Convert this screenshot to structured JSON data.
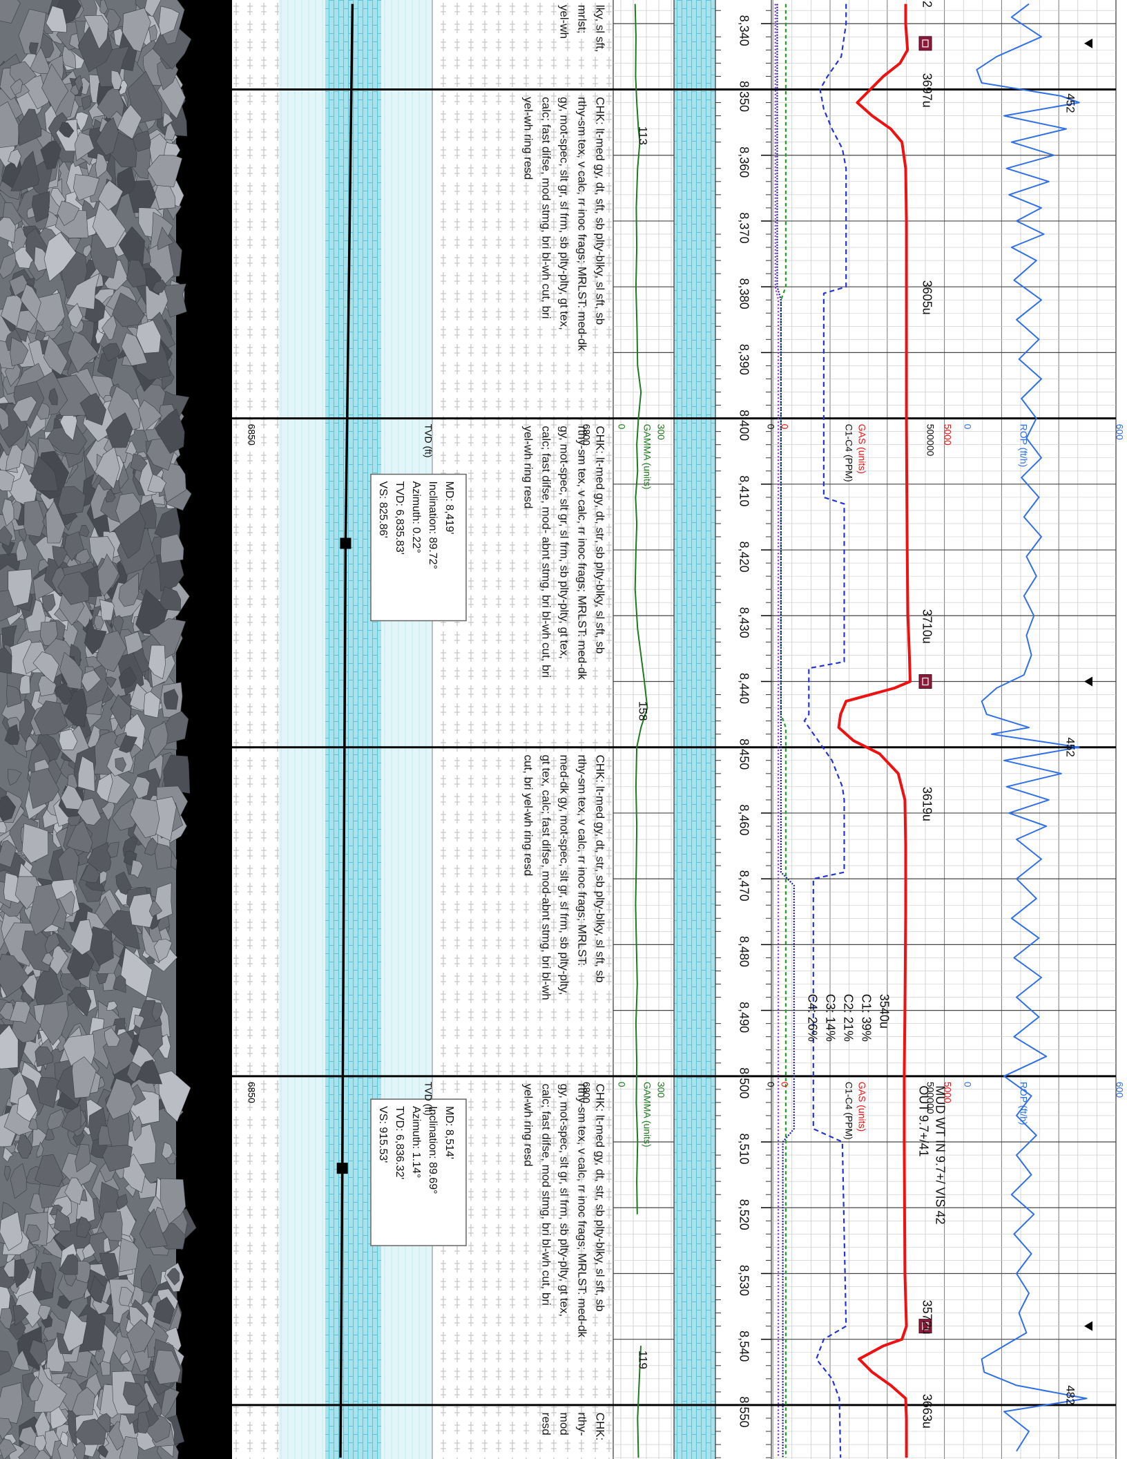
{
  "chart_data": {
    "type": "well-log",
    "xlim": [
      8336.4,
      8558.2
    ],
    "xticks": [
      {
        "value": 8340,
        "label": "8,340"
      },
      {
        "value": 8350,
        "label": "8,350"
      },
      {
        "value": 8360,
        "label": "8,360"
      },
      {
        "value": 8370,
        "label": "8,370"
      },
      {
        "value": 8380,
        "label": "8,380"
      },
      {
        "value": 8390,
        "label": "8,390"
      },
      {
        "value": 8400,
        "label": "8,400"
      },
      {
        "value": 8410,
        "label": "8,410"
      },
      {
        "value": 8420,
        "label": "8,420"
      },
      {
        "value": 8430,
        "label": "8,430"
      },
      {
        "value": 8440,
        "label": "8,440"
      },
      {
        "value": 8450,
        "label": "8,450"
      },
      {
        "value": 8460,
        "label": "8,460"
      },
      {
        "value": 8470,
        "label": "8,470"
      },
      {
        "value": 8480,
        "label": "8,480"
      },
      {
        "value": 8490,
        "label": "8,490"
      },
      {
        "value": 8500,
        "label": "8,500"
      },
      {
        "value": 8510,
        "label": "8,510"
      },
      {
        "value": 8520,
        "label": "8,520"
      },
      {
        "value": 8530,
        "label": "8,530"
      },
      {
        "value": 8540,
        "label": "8,540"
      },
      {
        "value": 8550,
        "label": "8,550"
      }
    ],
    "header_depths": [
      8400,
      8500
    ],
    "tracks": {
      "rop": {
        "label": "ROP (ft/h)",
        "lim": [
          0,
          600
        ],
        "color": "#2f6fe8",
        "x": [
          8337,
          8339,
          8342,
          8345,
          8347,
          8349,
          8351,
          8352,
          8354,
          8356,
          8358,
          8360,
          8362,
          8364,
          8366,
          8368,
          8370,
          8372,
          8374,
          8376,
          8379,
          8382,
          8385,
          8388,
          8391,
          8394,
          8397,
          8400,
          8403,
          8406,
          8409,
          8412,
          8415,
          8418,
          8421,
          8424,
          8427,
          8430,
          8433,
          8436,
          8439,
          8441,
          8443,
          8445,
          8447,
          8448,
          8450,
          8452,
          8454,
          8456,
          8458,
          8460,
          8462,
          8464,
          8467,
          8470,
          8473,
          8476,
          8479,
          8482,
          8485,
          8488,
          8491,
          8494,
          8497,
          8500,
          8503,
          8506,
          8509,
          8512,
          8515,
          8518,
          8521,
          8524,
          8527,
          8530,
          8533,
          8536,
          8539,
          8541,
          8543,
          8545,
          8547,
          8549,
          8551,
          8554,
          8557
        ],
        "values": [
          250,
          180,
          300,
          120,
          40,
          60,
          380,
          452,
          150,
          400,
          180,
          350,
          160,
          330,
          170,
          300,
          200,
          310,
          180,
          280,
          190,
          300,
          200,
          290,
          210,
          300,
          220,
          280,
          240,
          300,
          220,
          290,
          230,
          300,
          240,
          280,
          230,
          270,
          240,
          260,
          230,
          120,
          60,
          80,
          250,
          100,
          452,
          150,
          380,
          160,
          330,
          170,
          320,
          200,
          300,
          200,
          280,
          180,
          290,
          190,
          300,
          200,
          290,
          190,
          320,
          150,
          260,
          200,
          280,
          200,
          260,
          180,
          270,
          190,
          260,
          200,
          250,
          210,
          240,
          150,
          60,
          70,
          200,
          482,
          150,
          250,
          200
        ]
      },
      "gas": {
        "label": "GAS (units)",
        "lim": [
          0,
          5000
        ],
        "color": "#ee1111",
        "x": [
          8337,
          8340,
          8344,
          8346,
          8348,
          8350,
          8352,
          8354,
          8356,
          8358,
          8362,
          8370,
          8380,
          8390,
          8400,
          8410,
          8420,
          8430,
          8436,
          8440,
          8441,
          8443,
          8445,
          8447,
          8449,
          8451,
          8454,
          8458,
          8465,
          8475,
          8490,
          8500,
          8510,
          8520,
          8530,
          8538,
          8540,
          8541,
          8543,
          8545,
          8547,
          8549,
          8552,
          8558
        ],
        "values": [
          3600,
          3600,
          3650,
          3450,
          3000,
          2650,
          2300,
          2700,
          3200,
          3500,
          3600,
          3620,
          3620,
          3620,
          3620,
          3630,
          3640,
          3660,
          3700,
          3720,
          3300,
          2000,
          1850,
          1800,
          2200,
          2900,
          3400,
          3580,
          3600,
          3600,
          3580,
          3560,
          3560,
          3570,
          3580,
          3620,
          3500,
          3000,
          2350,
          2700,
          3200,
          3600,
          3620,
          3620
        ]
      },
      "ppm": {
        "label": "C1-C4 (PPM)",
        "lim": [
          0,
          500000
        ],
        "color": "#111111",
        "series": [
          {
            "color": "#2233dd",
            "dash": "7 5",
            "x": [
              8337,
              8340,
              8345,
              8348,
              8350,
              8353,
              8356,
              8359,
              8362,
              8380,
              8381,
              8412,
              8413,
              8437,
              8438,
              8445,
              8446,
              8449,
              8452,
              8456,
              8458,
              8469,
              8470,
              8508,
              8510,
              8538,
              8540,
              8543,
              8546,
              8549,
              8558
            ],
            "values": [
              200000,
              200000,
              187000,
              150000,
              130000,
              140000,
              162000,
              190000,
              200000,
              200000,
              140000,
              140000,
              195000,
              195000,
              100000,
              100000,
              88000,
              125000,
              162000,
              190000,
              195000,
              195000,
              112000,
              112000,
              190000,
              200000,
              140000,
              120000,
              162000,
              182000,
              185000
            ]
          },
          {
            "color": "#22a022",
            "dash": "5 4",
            "x": [
              8337,
              8380,
              8382,
              8445,
              8447,
              8558
            ],
            "values": [
              38000,
              38000,
              25000,
              25000,
              38000,
              38000
            ]
          },
          {
            "color": "#8a2bc8",
            "dash": "2 3",
            "x": [
              8337,
              8380,
              8382,
              8558
            ],
            "values": [
              10000,
              10000,
              18000,
              18000
            ]
          },
          {
            "color": "#1a1aa0",
            "dash": "2 2",
            "x": [
              8337,
              8380,
              8382,
              8469,
              8471,
              8508,
              8510,
              8558
            ],
            "values": [
              15000,
              15000,
              25000,
              25000,
              60000,
              60000,
              30000,
              30000
            ]
          }
        ]
      },
      "gamma": {
        "label": "GAMMA (units)",
        "lim": [
          0,
          300
        ],
        "color": "#1d7a1d",
        "x": [
          8337,
          8342,
          8348,
          8352,
          8356,
          8358,
          8362,
          8368,
          8374,
          8380,
          8386,
          8392,
          8396,
          8400,
          8404,
          8408,
          8412,
          8416,
          8420,
          8426,
          8432,
          8436,
          8440,
          8444,
          8447,
          8450,
          8456,
          8462,
          8468,
          8474,
          8480,
          8486,
          8492,
          8498,
          8504,
          8510,
          8516,
          8521,
          8530,
          8541,
          8546,
          8552,
          8558
        ],
        "values": [
          85,
          90,
          88,
          95,
          105,
          113,
          100,
          92,
          95,
          90,
          96,
          100,
          120,
          105,
          95,
          100,
          88,
          95,
          90,
          85,
          100,
          120,
          140,
          158,
          120,
          95,
          90,
          95,
          92,
          88,
          93,
          98,
          90,
          95,
          92,
          100,
          95,
          98,
          null,
          119,
          110,
          100,
          105
        ]
      },
      "tvd": {
        "label": "TVD (ft)",
        "lim": [
          6800,
          6850
        ],
        "color": "#000000",
        "x": [
          8337,
          8419,
          8514,
          8558
        ],
        "values": [
          6834.8,
          6835.83,
          6836.32,
          6836.6
        ],
        "markers": [
          false,
          true,
          true,
          false
        ]
      }
    },
    "gas_peaks": [
      {
        "depth": 8336.5,
        "label": "2"
      },
      {
        "depth": 8347.5,
        "label": "3697u"
      },
      {
        "depth": 8379,
        "label": "3605u"
      },
      {
        "depth": 8429,
        "label": "3710u"
      },
      {
        "depth": 8456,
        "label": "3619u"
      },
      {
        "depth": 8487.5,
        "lines": [
          "3540u",
          "C1: 39%",
          "C2: 21%",
          "C3: 14%",
          "C4: 26%"
        ]
      },
      {
        "depth": 8534,
        "label": "3572u"
      },
      {
        "depth": 8548.3,
        "label": "3663u"
      }
    ],
    "gas_markers": [
      8343,
      8440,
      8538
    ],
    "rop_labels": [
      {
        "depth": 8350.6,
        "value": 452
      },
      {
        "depth": 8448.5,
        "value": 452
      },
      {
        "depth": 8547,
        "value": 482
      }
    ],
    "gamma_labels": [
      {
        "depth": 8355.6,
        "value": 113
      },
      {
        "depth": 8443,
        "value": 158
      },
      {
        "depth": 8541.7,
        "value": 119
      }
    ],
    "mud": {
      "depth": 8501,
      "lines": [
        "MUD WT IN 9.7+/ VIS 42",
        "OUT 9.7+/41"
      ]
    },
    "surveys": [
      {
        "lines": [
          "MD: 8,419'",
          "Inclination: 89.72°",
          "Azimuth: 0.22°",
          "TVD: 6,835.83'",
          "VS: 825.86'"
        ]
      },
      {
        "lines": [
          "MD: 8,514'",
          "Inclination: 89.69°",
          "Azimuth: 1.14°",
          "TVD: 6,836.32'",
          "VS: 915.53'"
        ]
      }
    ],
    "descriptions": [
      {
        "depth": 8336.5,
        "lines": [
          "lky, sl sft,",
          "mrlst;",
          "yel-wh"
        ]
      },
      {
        "depth": 8350.5,
        "lines": [
          "CHK: lt-med gy, dt, sft, sb plty-blky, sl sft, sb",
          "rthy-sm tex, v calc, rr inoc frags; MRLST: med-dk",
          "gy, mot-spec, slt gr, sl frm, sb plty-plty, gt tex,",
          "calc; fast difse, mod stmg, bri bl-wh cut, bri",
          "yel-wh ring resd"
        ]
      },
      {
        "depth": 8400.5,
        "lines": [
          "CHK: lt-med gy, dt, str, sb plty-blky, sl sft, sb",
          "rthy-sm tex, v calc, rr inoc frags; MRLST: med-dk",
          "gy, mot-spec, slt gr, sl frm, sb plty-plty, gt tex,",
          "calc; fast difse, mod- abnt stmg, bri bl-wh cut, bri",
          "yel-wh ring resd"
        ]
      },
      {
        "depth": 8450.5,
        "lines": [
          "CHK: lt-med gy, dt, str, sb plty-blky, sl sft, sb",
          "rthy-sm tex, v calc, rr inoc frags; MRLST:",
          "med-dk gy, mot-spec, slt gr, sl frm, sb plty-plty,",
          "gt tex, calc; fast difse, mod-abnt stmg, bri bl-wh",
          "cut, bri yel-wh ring resd"
        ]
      },
      {
        "depth": 8500.5,
        "lines": [
          "CHK: lt-med gy, dt, str, sb plty-blky, sl sft, sb",
          "rthy-sm tex, v calc, rr inoc frags; MRLST: med-dk",
          "gy, mot-spec, slt gr, sl frm, sb plty-plty, gt tex,",
          "calc; fast difse, mod stmg, bri bl-wh cut, bri",
          "yel-wh ring resd"
        ]
      },
      {
        "depth": 8550.5,
        "lines": [
          "CHK:",
          "rthy-",
          "mod",
          "resd"
        ]
      }
    ]
  }
}
